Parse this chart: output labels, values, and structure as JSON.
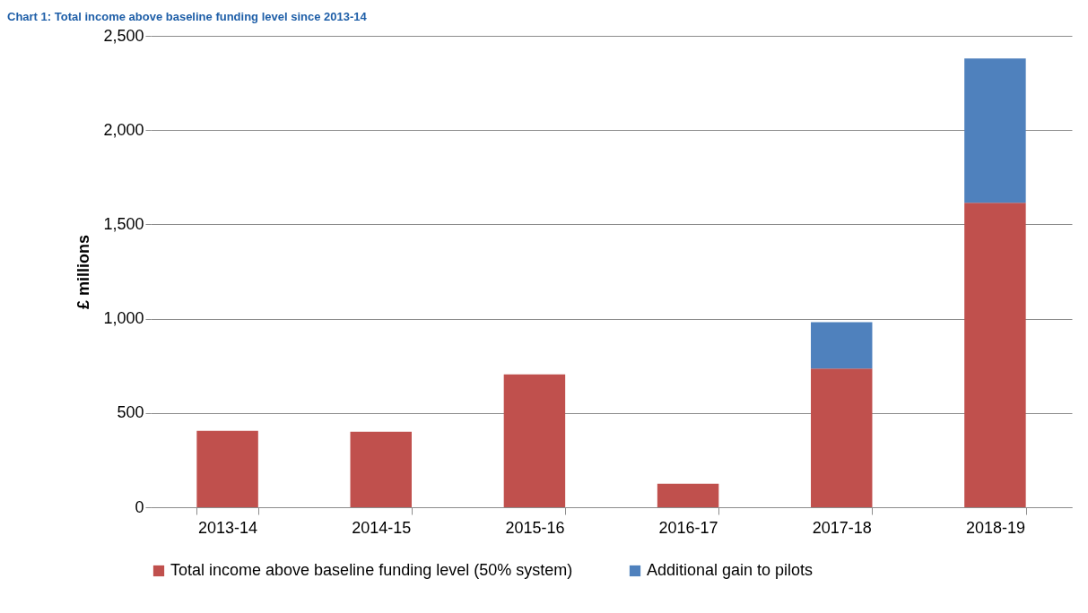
{
  "chart_data": {
    "type": "bar",
    "title": "Chart 1: Total income above baseline funding level since 2013-14",
    "ylabel": "£ millions",
    "categories": [
      "2013-14",
      "2014-15",
      "2015-16",
      "2016-17",
      "2017-18",
      "2018-19"
    ],
    "stacked": true,
    "series": [
      {
        "name": "Total income above baseline funding level (50% system)",
        "color": "#c0504d",
        "values": [
          405,
          400,
          705,
          125,
          735,
          1615
        ]
      },
      {
        "name": "Additional gain to pilots",
        "color": "#4f81bd",
        "values": [
          null,
          null,
          null,
          null,
          246,
          765
        ]
      }
    ],
    "ylim": [
      0,
      2500
    ],
    "yticks": [
      {
        "value": 0,
        "label": "0"
      },
      {
        "value": 500,
        "label": "500"
      },
      {
        "value": 1000,
        "label": "1,000"
      },
      {
        "value": 1500,
        "label": "1,500"
      },
      {
        "value": 2000,
        "label": "2,000"
      },
      {
        "value": 2500,
        "label": "2,500"
      }
    ],
    "grid": "y",
    "legend": "bottom"
  }
}
